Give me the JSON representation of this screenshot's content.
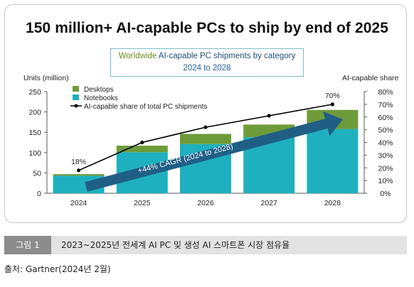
{
  "figure": {
    "main_title": "150 million+ AI-capable PCs to ship by end of 2025",
    "subtitle_line1_a": "Worldwide",
    "subtitle_line1_b": " AI-capable PC shipments by category",
    "subtitle_line2": "2024 to 2028"
  },
  "chart_data": {
    "type": "bar",
    "stacked": true,
    "categories": [
      "2024",
      "2025",
      "2026",
      "2027",
      "2028"
    ],
    "series": [
      {
        "name": "Notebooks",
        "values": [
          43,
          101,
          121,
          138,
          158
        ],
        "color": "#1fb0bf"
      },
      {
        "name": "Desktops",
        "values": [
          4,
          16,
          25,
          31,
          47
        ],
        "color": "#6e9b3a"
      }
    ],
    "line_series": {
      "name": "AI-capable share of total PC shipments",
      "values": [
        18,
        40,
        52,
        61,
        70
      ],
      "color": "#000000",
      "axis": "right"
    },
    "data_labels": [
      {
        "category": "2024",
        "text": "18%"
      },
      {
        "category": "2028",
        "text": "70%"
      }
    ],
    "annotation": "+44% CAGR (2024 to 2028)",
    "ylabel": "Units (million)",
    "y2label": "AI-capable share",
    "ylim": [
      0,
      250
    ],
    "y2lim": [
      0,
      80
    ],
    "yticks": [
      "0",
      "50",
      "100",
      "150",
      "200",
      "250"
    ],
    "y2ticks": [
      "0%",
      "10%",
      "20%",
      "30%",
      "40%",
      "50%",
      "60%",
      "70%",
      "80%"
    ],
    "legend_placement": "top-left",
    "grid": false
  },
  "caption": {
    "tag": "그림 1",
    "text": "2023~2025년 전세계 AI PC 및 생성 AI 스마트폰 시장 점유율"
  },
  "source": "출처: Gartner(2024년 2월)",
  "colors": {
    "accent_arrow": "#1f5f86"
  }
}
